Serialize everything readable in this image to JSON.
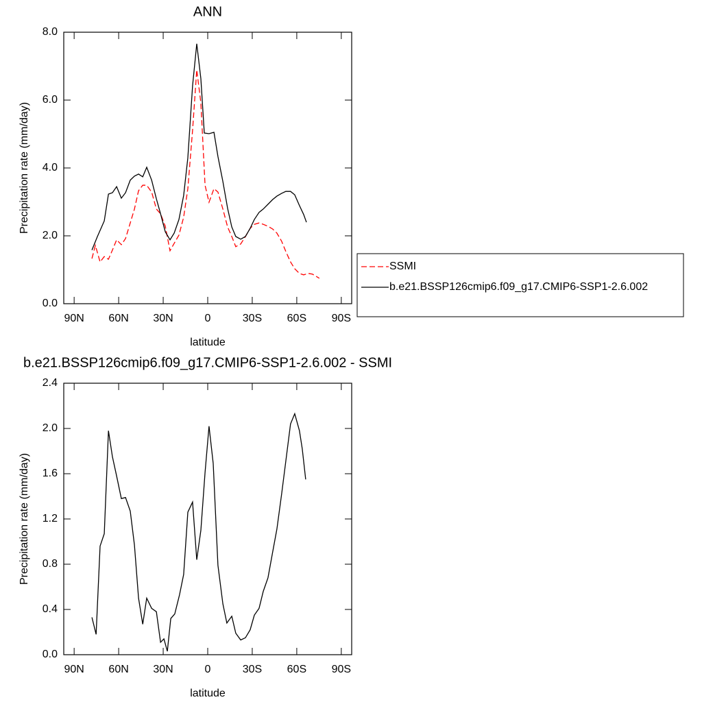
{
  "chart_data": [
    {
      "type": "line",
      "title": "ANN",
      "xlabel": "latitude",
      "ylabel": "Precipitation rate (mm/day)",
      "xlim": [
        97,
        -97
      ],
      "xticks": [
        {
          "value": 90,
          "label": "90N"
        },
        {
          "value": 60,
          "label": "60N"
        },
        {
          "value": 30,
          "label": "30N"
        },
        0,
        {
          "value": -30,
          "label": "30S"
        },
        {
          "value": -60,
          "label": "60S"
        },
        {
          "value": -90,
          "label": "90S"
        }
      ],
      "ylim": [
        0,
        8
      ],
      "yticks": [
        {
          "value": 0,
          "label": "0.0"
        },
        {
          "value": 2,
          "label": "2.0"
        },
        {
          "value": 4,
          "label": "4.0"
        },
        {
          "value": 6,
          "label": "6.0"
        },
        {
          "value": 8,
          "label": "8.0"
        }
      ],
      "legend": "outside-right",
      "series": [
        {
          "name": "SSMI",
          "color": "#ff0000",
          "style": "dashed",
          "x": [
            78,
            75.7,
            72.5,
            69.7,
            66.9,
            64.2,
            61.4,
            58.2,
            55.4,
            52.2,
            49.4,
            46.6,
            43.8,
            41.1,
            37.8,
            34.6,
            31.8,
            28.6,
            25.4,
            22.6,
            19.4,
            16.2,
            13.4,
            10.2,
            7.4,
            4.6,
            1.8,
            -0.9,
            -4.2,
            -6.9,
            -10.2,
            -13.4,
            -16.2,
            -18.9,
            -22.2,
            -25.4,
            -28.6,
            -31.4,
            -34.6,
            -37.4,
            -40.6,
            -43.8,
            -46.6,
            -49.8,
            -52.6,
            -55.8,
            -58.6,
            -61.8,
            -64.6,
            -67.8,
            -70.6,
            -75.2
          ],
          "values": [
            1.33,
            1.72,
            1.23,
            1.39,
            1.31,
            1.58,
            1.88,
            1.74,
            1.92,
            2.38,
            2.79,
            3.33,
            3.49,
            3.49,
            3.29,
            2.79,
            2.65,
            2.28,
            1.56,
            1.78,
            2.02,
            2.55,
            3.39,
            5.11,
            6.89,
            5.92,
            3.49,
            2.99,
            3.39,
            3.29,
            2.79,
            2.26,
            1.98,
            1.68,
            1.76,
            1.98,
            2.22,
            2.34,
            2.38,
            2.34,
            2.28,
            2.2,
            2.08,
            1.84,
            1.54,
            1.23,
            1.03,
            0.89,
            0.85,
            0.89,
            0.87,
            0.75
          ]
        },
        {
          "name": "b.e21.BSSP126cmip6.f09_g17.CMIP6-SSP1-2.6.002",
          "color": "#000000",
          "style": "solid",
          "x": [
            78,
            74.3,
            69.7,
            66.9,
            64.2,
            61.4,
            58.2,
            55.4,
            52.2,
            49.4,
            46.6,
            43.8,
            41.1,
            37.8,
            34.6,
            31.8,
            28.6,
            25.4,
            22.6,
            19.4,
            16.2,
            13.4,
            10.2,
            7.4,
            4.6,
            2.3,
            -0.9,
            -4.2,
            -6.9,
            -10.2,
            -13.4,
            -16.2,
            -18.9,
            -22.2,
            -25.4,
            -28.6,
            -31.4,
            -34.6,
            -37.4,
            -40.6,
            -43.8,
            -46.6,
            -49.8,
            -52.6,
            -55.8,
            -58.6,
            -61.8,
            -64.6,
            -66.5
          ],
          "values": [
            1.58,
            1.98,
            2.44,
            3.23,
            3.27,
            3.45,
            3.11,
            3.27,
            3.64,
            3.76,
            3.82,
            3.74,
            4.02,
            3.64,
            3.09,
            2.65,
            2.12,
            1.88,
            2.08,
            2.48,
            3.19,
            4.3,
            6.42,
            7.66,
            6.63,
            5.03,
            5.01,
            5.05,
            4.34,
            3.6,
            2.81,
            2.26,
            1.98,
            1.9,
            1.98,
            2.22,
            2.48,
            2.69,
            2.79,
            2.93,
            3.07,
            3.17,
            3.25,
            3.31,
            3.31,
            3.21,
            2.89,
            2.63,
            2.4
          ]
        }
      ]
    },
    {
      "type": "line",
      "title": "b.e21.BSSP126cmip6.f09_g17.CMIP6-SSP1-2.6.002 - SSMI",
      "xlabel": "latitude",
      "ylabel": "Precipitation rate (mm/day)",
      "xlim": [
        97,
        -97
      ],
      "xticks": [
        {
          "value": 90,
          "label": "90N"
        },
        {
          "value": 60,
          "label": "60N"
        },
        {
          "value": 30,
          "label": "30N"
        },
        0,
        {
          "value": -30,
          "label": "30S"
        },
        {
          "value": -60,
          "label": "60S"
        },
        {
          "value": -90,
          "label": "90S"
        }
      ],
      "ylim": [
        0,
        2.4
      ],
      "yticks": [
        {
          "value": 0,
          "label": "0.0"
        },
        0.4,
        0.8,
        1.2,
        1.6,
        {
          "value": 2,
          "label": "2.0"
        },
        2.4
      ],
      "series": [
        {
          "color": "#000000",
          "style": "solid",
          "x": [
            78,
            75.2,
            72.5,
            69.7,
            66.9,
            64.2,
            61.4,
            58.2,
            55.4,
            52.2,
            49.4,
            46.6,
            43.8,
            41.1,
            37.8,
            34.6,
            31.8,
            29.5,
            27.2,
            24.9,
            22.2,
            19,
            16.2,
            13.4,
            10.2,
            7.4,
            4.6,
            1.8,
            -0.9,
            -3.7,
            -6.9,
            -10.2,
            -12.9,
            -16.2,
            -18.9,
            -22.2,
            -25.4,
            -28.6,
            -31.4,
            -34.6,
            -37.4,
            -40.6,
            -43.8,
            -46.6,
            -49.8,
            -52.6,
            -55.8,
            -58.6,
            -61.8,
            -63.7,
            -66
          ],
          "values": [
            0.33,
            0.18,
            0.96,
            1.07,
            1.98,
            1.75,
            1.58,
            1.38,
            1.39,
            1.27,
            0.97,
            0.5,
            0.27,
            0.5,
            0.41,
            0.38,
            0.11,
            0.14,
            0.03,
            0.32,
            0.36,
            0.53,
            0.71,
            1.26,
            1.35,
            0.84,
            1.1,
            1.61,
            2.02,
            1.69,
            0.79,
            0.45,
            0.28,
            0.34,
            0.19,
            0.13,
            0.15,
            0.22,
            0.35,
            0.41,
            0.56,
            0.68,
            0.91,
            1.11,
            1.42,
            1.71,
            2.04,
            2.13,
            1.98,
            1.82,
            1.55
          ]
        }
      ]
    }
  ]
}
